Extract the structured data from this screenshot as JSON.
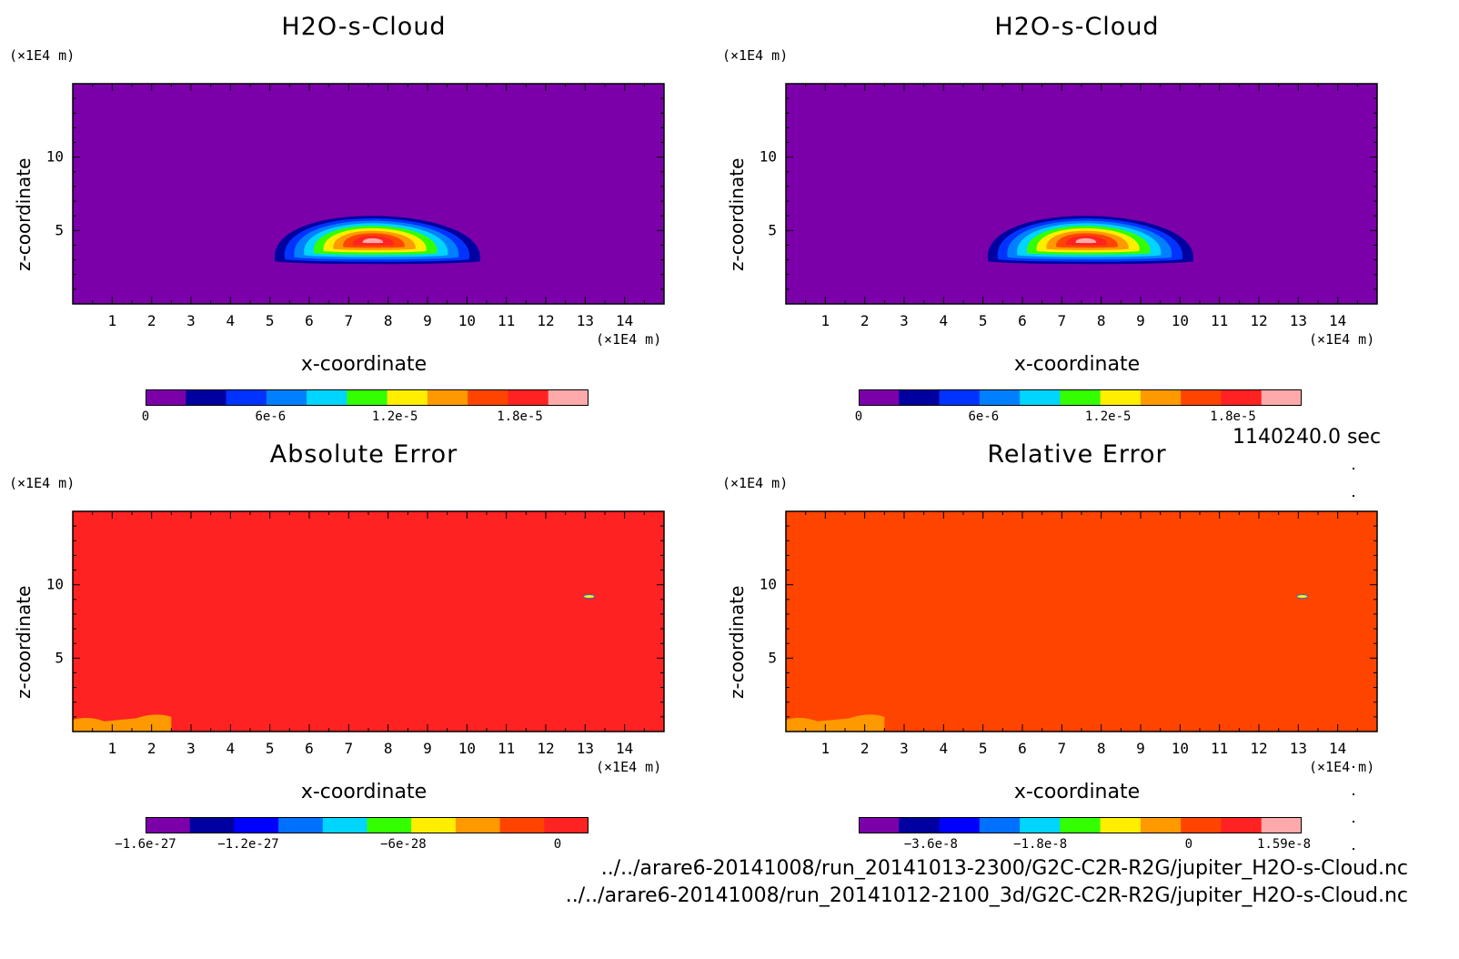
{
  "panels": [
    {
      "title": "H2O-s-Cloud",
      "xlabel": "x-coordinate",
      "ylabel": "z-coordinate",
      "xunit": "(×1E4 m)",
      "yunit": "(×1E4 m)",
      "background": "#7b00aa",
      "colorbar": {
        "colors": [
          "#7b00aa",
          "#0000a0",
          "#0033ff",
          "#0080ff",
          "#00d5ff",
          "#33ff00",
          "#ffee00",
          "#ff9900",
          "#ff4400",
          "#ff2222",
          "#ffaaaa"
        ],
        "ticks": [
          {
            "label": "0",
            "frac": 0.0
          },
          {
            "label": "6e-6",
            "frac": 0.282
          },
          {
            "label": "1.2e-5",
            "frac": 0.563
          },
          {
            "label": "1.8e-5",
            "frac": 0.845
          }
        ]
      }
    },
    {
      "title": "H2O-s-Cloud",
      "xlabel": "x-coordinate",
      "ylabel": "z-coordinate",
      "xunit": "(×1E4 m)",
      "yunit": "(×1E4 m)",
      "background": "#7b00aa",
      "colorbar": {
        "colors": [
          "#7b00aa",
          "#0000a0",
          "#0033ff",
          "#0080ff",
          "#00d5ff",
          "#33ff00",
          "#ffee00",
          "#ff9900",
          "#ff4400",
          "#ff2222",
          "#ffaaaa"
        ],
        "ticks": [
          {
            "label": "0",
            "frac": 0.0
          },
          {
            "label": "6e-6",
            "frac": 0.282
          },
          {
            "label": "1.2e-5",
            "frac": 0.563
          },
          {
            "label": "1.8e-5",
            "frac": 0.845
          }
        ]
      }
    },
    {
      "title": "Absolute Error",
      "xlabel": "x-coordinate",
      "ylabel": "z-coordinate",
      "xunit": "(×1E4 m)",
      "yunit": "(×1E4 m)",
      "background": "#ff2222",
      "colorbar": {
        "colors": [
          "#7b00aa",
          "#0000a0",
          "#0000ff",
          "#0070ff",
          "#00d5ff",
          "#33ff00",
          "#ffee00",
          "#ff9900",
          "#ff4400",
          "#ff2222"
        ],
        "ticks": [
          {
            "label": "−1.6e-27",
            "frac": 0.0
          },
          {
            "label": "−1.2e-27",
            "frac": 0.232
          },
          {
            "label": "−6e-28",
            "frac": 0.582
          },
          {
            "label": "0",
            "frac": 0.93
          }
        ]
      }
    },
    {
      "title": "Relative Error",
      "xlabel": "x-coordinate",
      "ylabel": "z-coordinate",
      "xunit": "(×1E4 m)",
      "yunit": "(×1E4 m)",
      "background": "#ff4400",
      "colorbar": {
        "colors": [
          "#7b00aa",
          "#0000a0",
          "#0000ff",
          "#0070ff",
          "#00d5ff",
          "#33ff00",
          "#ffee00",
          "#ff9900",
          "#ff4400",
          "#ff2222",
          "#ffaaaa"
        ],
        "ticks": [
          {
            "label": "−3.6e-8",
            "frac": 0.163
          },
          {
            "label": "−1.8e-8",
            "frac": 0.41
          },
          {
            "label": "0",
            "frac": 0.745
          },
          {
            "label": "1.59e-8",
            "frac": 0.96
          }
        ]
      }
    }
  ],
  "timestamp": "1140240.0 sec",
  "file_paths": [
    "../../arare6-20141008/run_20141013-2300/G2C-C2R-R2G/jupiter_H2O-s-Cloud.nc",
    "../../arare6-20141008/run_20141012-2100_3d/G2C-C2R-R2G/jupiter_H2O-s-Cloud.nc"
  ],
  "chart_data": [
    {
      "type": "heatmap",
      "title": "H2O-s-Cloud",
      "xlabel": "x-coordinate",
      "ylabel": "z-coordinate",
      "xlim": [
        0,
        15
      ],
      "ylim": [
        0,
        15
      ],
      "xticks": [
        1,
        2,
        3,
        4,
        5,
        6,
        7,
        8,
        9,
        10,
        11,
        12,
        13,
        14
      ],
      "yticks": [
        5,
        10
      ],
      "levels": [
        0,
        2e-06,
        4e-06,
        6e-06,
        8e-06,
        1e-05,
        1.2e-05,
        1.4e-05,
        1.6e-05,
        1.8e-05,
        2e-05
      ],
      "feature": {
        "shape": "cloud lobe",
        "x_range": [
          5.0,
          10.2
        ],
        "z_range": [
          2.9,
          6.0
        ],
        "peak_x": 7.6,
        "peak_z": 4.3,
        "peak_value": 2e-05
      }
    },
    {
      "type": "heatmap",
      "title": "H2O-s-Cloud",
      "xlabel": "x-coordinate",
      "ylabel": "z-coordinate",
      "xlim": [
        0,
        15
      ],
      "ylim": [
        0,
        15
      ],
      "xticks": [
        1,
        2,
        3,
        4,
        5,
        6,
        7,
        8,
        9,
        10,
        11,
        12,
        13,
        14
      ],
      "yticks": [
        5,
        10
      ],
      "levels": [
        0,
        2e-06,
        4e-06,
        6e-06,
        8e-06,
        1e-05,
        1.2e-05,
        1.4e-05,
        1.6e-05,
        1.8e-05,
        2e-05
      ],
      "feature": {
        "shape": "cloud lobe",
        "x_range": [
          5.0,
          10.2
        ],
        "z_range": [
          2.9,
          6.0
        ],
        "peak_x": 7.6,
        "peak_z": 4.3,
        "peak_value": 2e-05
      }
    },
    {
      "type": "heatmap",
      "title": "Absolute Error",
      "xlabel": "x-coordinate",
      "ylabel": "z-coordinate",
      "xlim": [
        0,
        15
      ],
      "ylim": [
        0,
        15
      ],
      "xticks": [
        1,
        2,
        3,
        4,
        5,
        6,
        7,
        8,
        9,
        10,
        11,
        12,
        13,
        14
      ],
      "yticks": [
        5,
        10
      ],
      "background_value": 0,
      "features": [
        {
          "x_range": [
            0,
            2.5
          ],
          "z_range": [
            0,
            1.0
          ],
          "level": "near 0 (orange)"
        },
        {
          "x": 13.1,
          "z": 9.2,
          "level": "small spot"
        }
      ]
    },
    {
      "type": "heatmap",
      "title": "Relative Error",
      "xlabel": "x-coordinate",
      "ylabel": "z-coordinate",
      "xlim": [
        0,
        15
      ],
      "ylim": [
        0,
        15
      ],
      "xticks": [
        1,
        2,
        3,
        4,
        5,
        6,
        7,
        8,
        9,
        10,
        11,
        12,
        13,
        14
      ],
      "yticks": [
        5,
        10
      ],
      "background_value": 0,
      "features": [
        {
          "x_range": [
            0,
            2.5
          ],
          "z_range": [
            0,
            1.0
          ],
          "level": "negative (orange)"
        },
        {
          "x": 13.1,
          "z": 9.2,
          "level": "small spot"
        }
      ]
    }
  ]
}
